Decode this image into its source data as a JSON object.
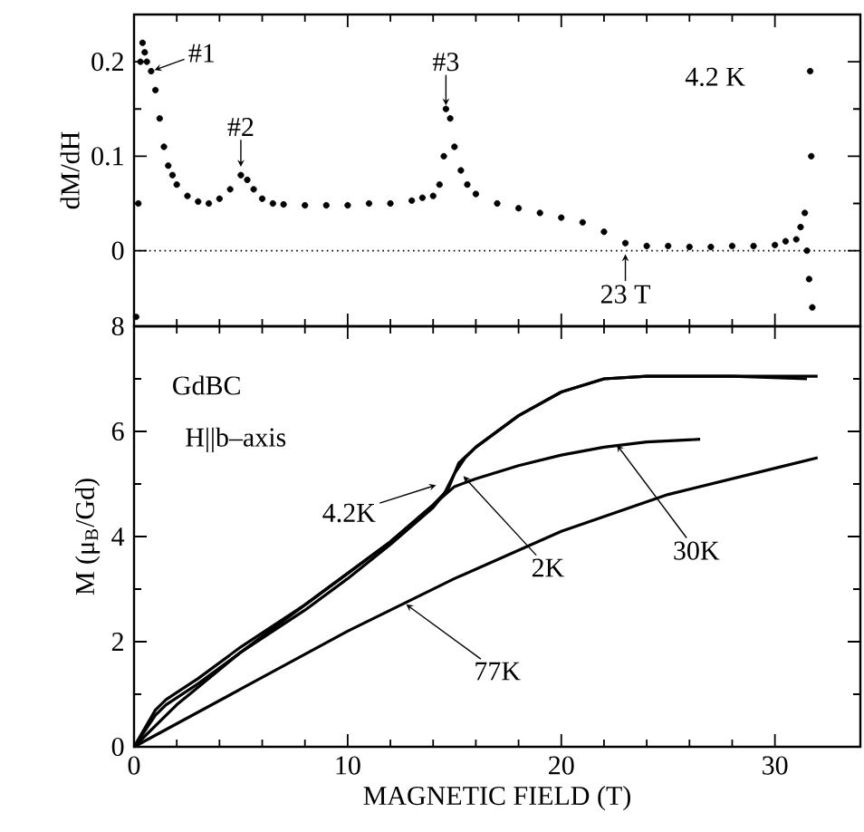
{
  "chart_data": [
    {
      "type": "scatter",
      "ylabel": "dM/dH",
      "xlim": [
        0,
        34
      ],
      "ylim": [
        -0.08,
        0.25
      ],
      "yticks": [
        0,
        0.1,
        0.2
      ],
      "tick_labels": "y",
      "color": "#000000",
      "x": [
        0.1,
        0.2,
        0.3,
        0.4,
        0.5,
        0.6,
        0.8,
        1.0,
        1.2,
        1.4,
        1.6,
        1.8,
        2.0,
        2.5,
        3.0,
        3.5,
        4.0,
        4.5,
        5.0,
        5.3,
        5.6,
        6.0,
        6.5,
        7,
        8,
        9,
        10,
        11,
        12,
        13,
        13.5,
        14.0,
        14.3,
        14.5,
        14.6,
        14.8,
        15.0,
        15.3,
        15.6,
        16,
        17,
        18,
        19,
        20,
        21,
        22,
        23,
        24,
        25,
        26,
        27,
        28,
        29,
        30,
        30.5,
        31.0,
        31.2,
        31.4,
        31.5,
        31.6,
        31.65,
        31.7,
        31.75
      ],
      "values": [
        -0.07,
        0.05,
        0.2,
        0.22,
        0.21,
        0.2,
        0.19,
        0.17,
        0.14,
        0.11,
        0.09,
        0.08,
        0.07,
        0.058,
        0.052,
        0.05,
        0.055,
        0.065,
        0.08,
        0.075,
        0.065,
        0.055,
        0.05,
        0.049,
        0.048,
        0.048,
        0.048,
        0.05,
        0.05,
        0.053,
        0.056,
        0.058,
        0.07,
        0.1,
        0.15,
        0.14,
        0.11,
        0.085,
        0.07,
        0.06,
        0.05,
        0.045,
        0.04,
        0.035,
        0.03,
        0.02,
        0.008,
        0.005,
        0.005,
        0.004,
        0.004,
        0.005,
        0.005,
        0.006,
        0.01,
        0.012,
        0.025,
        0.04,
        0.0,
        -0.03,
        0.19,
        0.1,
        -0.06
      ],
      "ref_lines": [
        {
          "axis": "y",
          "value": 0,
          "line_style": "dotted"
        }
      ],
      "annotations": [
        {
          "text": "#1",
          "x": 0.8,
          "y": 0.19
        },
        {
          "text": "#2",
          "x": 5.0,
          "y": 0.085
        },
        {
          "text": "#3",
          "x": 14.6,
          "y": 0.15
        },
        {
          "text": "23 T",
          "x": 23.0,
          "y": 0.0
        },
        "4.2 K"
      ]
    },
    {
      "type": "line",
      "xlabel": "MAGNETIC FIELD (T)",
      "ylabel": "M  (μ$_{B}$/Gd)",
      "xlim": [
        0,
        34
      ],
      "xticks": [
        0,
        10,
        20,
        30
      ],
      "ylim": [
        0,
        8
      ],
      "yticks": [
        0,
        2,
        4,
        6,
        8
      ],
      "line_style": "solid",
      "series": [
        {
          "color": "#000000",
          "x": [
            0,
            1,
            1.5,
            3,
            5,
            8,
            10,
            12,
            14,
            14.7,
            15.2,
            16,
            18,
            20,
            22,
            24,
            28,
            32
          ],
          "values": [
            0,
            0.7,
            0.9,
            1.3,
            1.9,
            2.7,
            3.3,
            3.9,
            4.6,
            4.9,
            5.4,
            5.7,
            6.3,
            6.75,
            7.0,
            7.05,
            7.05,
            7.05
          ]
        },
        {
          "color": "#000000",
          "x": [
            0,
            1,
            1.5,
            3,
            5,
            8,
            10,
            12,
            14,
            14.5,
            15,
            15.5,
            16,
            18,
            20,
            22,
            24,
            28,
            31.5
          ],
          "values": [
            0,
            0.6,
            0.8,
            1.2,
            1.8,
            2.6,
            3.2,
            3.85,
            4.55,
            4.8,
            5.2,
            5.5,
            5.7,
            6.3,
            6.75,
            7.0,
            7.05,
            7.05,
            7.0
          ]
        },
        {
          "color": "#000000",
          "x": [
            0,
            2,
            5,
            8,
            10,
            12,
            14,
            15,
            16,
            18,
            20,
            22,
            24,
            26.5
          ],
          "values": [
            0,
            0.8,
            1.8,
            2.7,
            3.3,
            3.9,
            4.6,
            4.95,
            5.1,
            5.35,
            5.55,
            5.7,
            5.8,
            5.85
          ]
        },
        {
          "color": "#000000",
          "x": [
            0,
            5,
            10,
            15,
            20,
            25,
            30,
            32
          ],
          "values": [
            0,
            1.1,
            2.2,
            3.2,
            4.1,
            4.8,
            5.3,
            5.5
          ]
        }
      ],
      "annotations": [
        "GdBC",
        "H||b–axis",
        {
          "text": "4.2K",
          "x": 14.3,
          "y": 5.0
        },
        {
          "text": "2K",
          "x": 15.3,
          "y": 5.2
        },
        {
          "text": "30K",
          "x": 22.5,
          "y": 5.8
        },
        {
          "text": "77K",
          "x": 12.6,
          "y": 2.75
        }
      ]
    }
  ]
}
